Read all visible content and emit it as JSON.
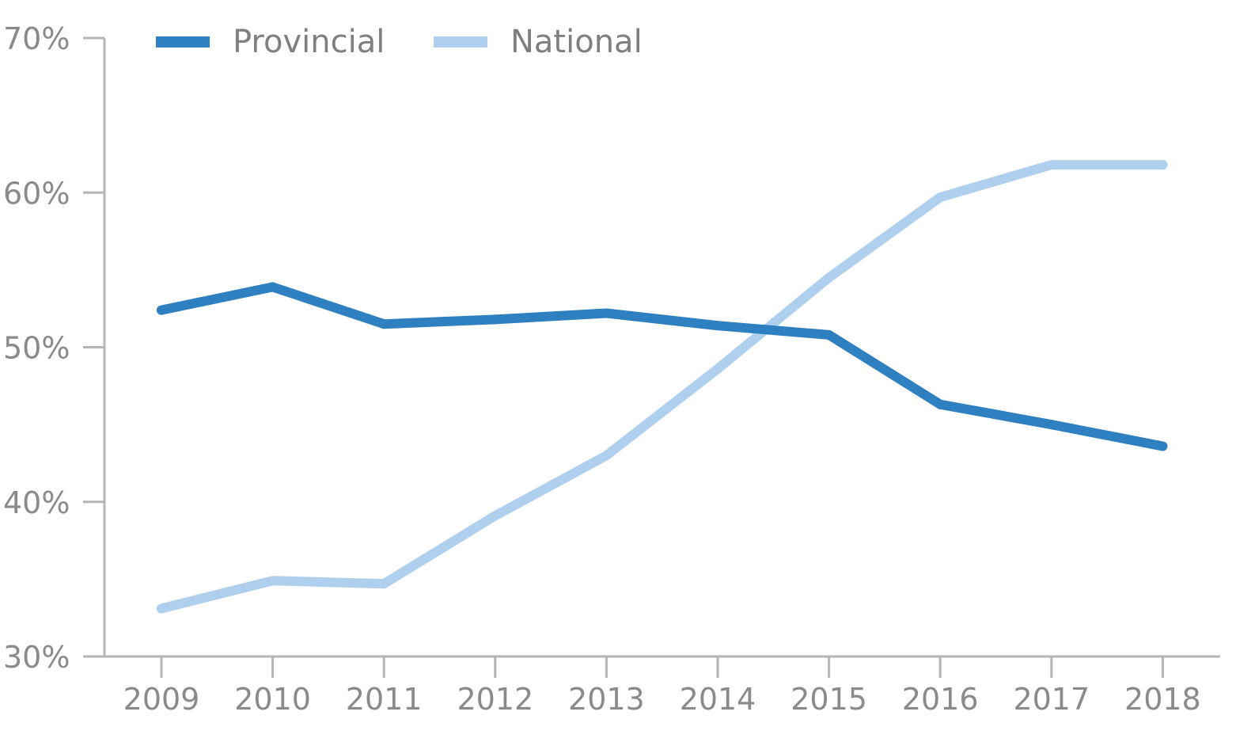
{
  "chart_data": {
    "type": "line",
    "title": "",
    "xlabel": "",
    "ylabel": "",
    "categories": [
      "2009",
      "2010",
      "2011",
      "2012",
      "2013",
      "2014",
      "2015",
      "2016",
      "2017",
      "2018"
    ],
    "series": [
      {
        "name": "Provincial",
        "color": "#2f80c1",
        "values": [
          52.4,
          53.9,
          51.5,
          51.8,
          52.2,
          51.4,
          50.8,
          46.3,
          45.0,
          43.6
        ]
      },
      {
        "name": "National",
        "color": "#aed0ee",
        "values": [
          33.1,
          34.9,
          34.7,
          39.1,
          43.0,
          48.6,
          54.5,
          59.7,
          61.8,
          61.8
        ]
      }
    ],
    "ylim": [
      30,
      70
    ],
    "yticks": [
      30,
      40,
      50,
      60,
      70
    ],
    "ytick_labels": [
      "30%",
      "40%",
      "50%",
      "60%",
      "70%"
    ],
    "legend_position": "top-left",
    "grid": false,
    "axis_color": "#b5b5b5",
    "label_color": "#8a8a8a"
  }
}
